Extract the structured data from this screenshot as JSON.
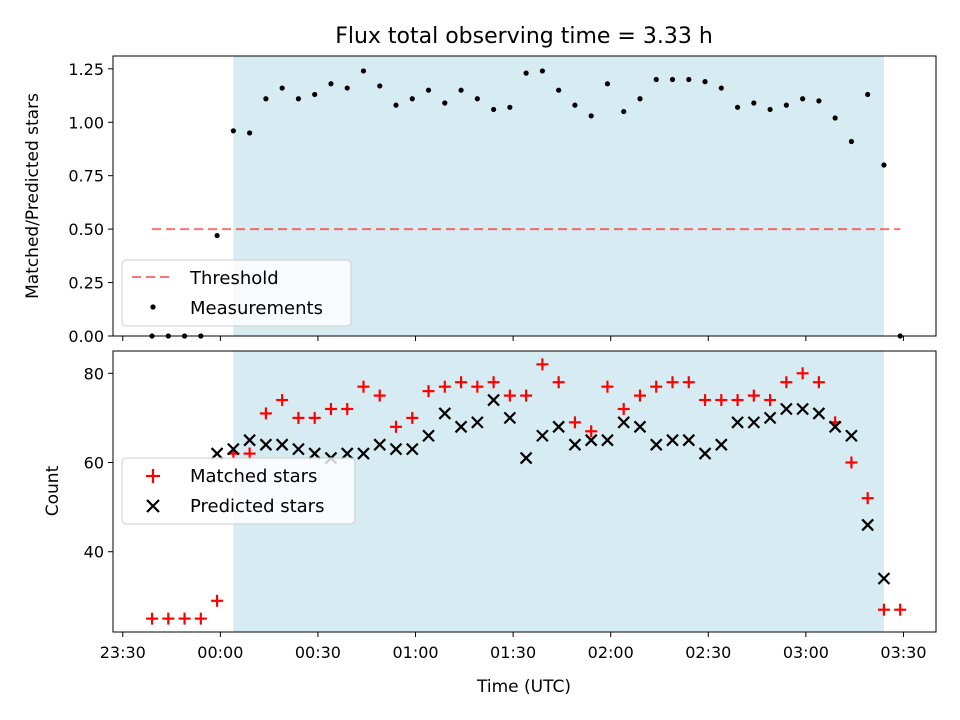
{
  "title": "Flux total observing time = 3.33 h",
  "xlabel": "Time (UTC)",
  "x_tick_labels": [
    "23:30",
    "00:00",
    "00:30",
    "01:00",
    "01:30",
    "02:00",
    "02:30",
    "03:00",
    "03:30"
  ],
  "colors": {
    "shade": "#add8e6",
    "threshold": "#ff0000",
    "matched": "#ff0000",
    "predicted": "#000000",
    "measurements": "#000000"
  },
  "chart_data": [
    {
      "type": "scatter",
      "panel": "top",
      "ylabel": "Matched/Predicted stars",
      "ylim": [
        0,
        1.31
      ],
      "y_ticks": [
        "0.00",
        "0.25",
        "0.50",
        "0.75",
        "1.00",
        "1.25"
      ],
      "xlim_minutes": [
        -33,
        220
      ],
      "shaded_interval_minutes": [
        4,
        204
      ],
      "threshold": {
        "name": "Threshold",
        "y": 0.5,
        "x_range_minutes": [
          -21,
          209
        ]
      },
      "legend": [
        "Threshold",
        "Measurements"
      ],
      "legend_position": "lower-left",
      "series": [
        {
          "name": "Measurements",
          "x": [
            -21,
            -16,
            -11,
            -6,
            -1,
            4,
            9,
            14,
            19,
            24,
            29,
            34,
            39,
            44,
            49,
            54,
            59,
            64,
            69,
            74,
            79,
            84,
            89,
            94,
            99,
            104,
            109,
            114,
            119,
            124,
            129,
            134,
            139,
            144,
            149,
            154,
            159,
            164,
            169,
            174,
            179,
            184,
            189,
            194,
            199,
            204,
            209
          ],
          "y": [
            0,
            0,
            0,
            0,
            0.47,
            0.96,
            0.95,
            1.11,
            1.16,
            1.11,
            1.13,
            1.18,
            1.16,
            1.24,
            1.17,
            1.08,
            1.11,
            1.15,
            1.09,
            1.15,
            1.11,
            1.06,
            1.07,
            1.23,
            1.24,
            1.15,
            1.08,
            1.03,
            1.18,
            1.05,
            1.11,
            1.2,
            1.2,
            1.2,
            1.19,
            1.16,
            1.07,
            1.09,
            1.06,
            1.08,
            1.11,
            1.1,
            1.02,
            0.91,
            1.13,
            0.8,
            0
          ]
        }
      ]
    },
    {
      "type": "scatter",
      "panel": "bottom",
      "ylabel": "Count",
      "ylim": [
        22,
        85
      ],
      "y_ticks": [
        "40",
        "60",
        "80"
      ],
      "xlim_minutes": [
        -33,
        220
      ],
      "shaded_interval_minutes": [
        4,
        204
      ],
      "legend": [
        "Matched stars",
        "Predicted stars"
      ],
      "legend_position": "center-left",
      "series": [
        {
          "name": "Matched stars",
          "marker": "plus",
          "x": [
            -21,
            -16,
            -11,
            -6,
            -1,
            4,
            9,
            14,
            19,
            24,
            29,
            34,
            39,
            44,
            49,
            54,
            59,
            64,
            69,
            74,
            79,
            84,
            89,
            94,
            99,
            104,
            109,
            114,
            119,
            124,
            129,
            134,
            139,
            144,
            149,
            154,
            159,
            164,
            169,
            174,
            179,
            184,
            189,
            194,
            199,
            204,
            209
          ],
          "y": [
            25,
            25,
            25,
            25,
            29,
            62,
            62,
            71,
            74,
            70,
            70,
            72,
            72,
            77,
            75,
            68,
            70,
            76,
            77,
            78,
            77,
            78,
            75,
            75,
            82,
            78,
            69,
            67,
            77,
            72,
            75,
            77,
            78,
            78,
            74,
            74,
            74,
            75,
            74,
            78,
            80,
            78,
            69,
            60,
            52,
            27,
            27
          ]
        },
        {
          "name": "Predicted stars",
          "marker": "x",
          "x": [
            -1,
            4,
            9,
            14,
            19,
            24,
            29,
            34,
            39,
            44,
            49,
            54,
            59,
            64,
            69,
            74,
            79,
            84,
            89,
            94,
            99,
            104,
            109,
            114,
            119,
            124,
            129,
            134,
            139,
            144,
            149,
            154,
            159,
            164,
            169,
            174,
            179,
            184,
            189,
            194,
            199,
            204
          ],
          "y": [
            62,
            63,
            65,
            64,
            64,
            63,
            62,
            61,
            62,
            62,
            64,
            63,
            63,
            66,
            71,
            68,
            69,
            74,
            70,
            61,
            66,
            68,
            64,
            65,
            65,
            69,
            68,
            64,
            65,
            65,
            62,
            64,
            69,
            69,
            70,
            72,
            72,
            71,
            68,
            66,
            46,
            34
          ]
        }
      ]
    }
  ]
}
